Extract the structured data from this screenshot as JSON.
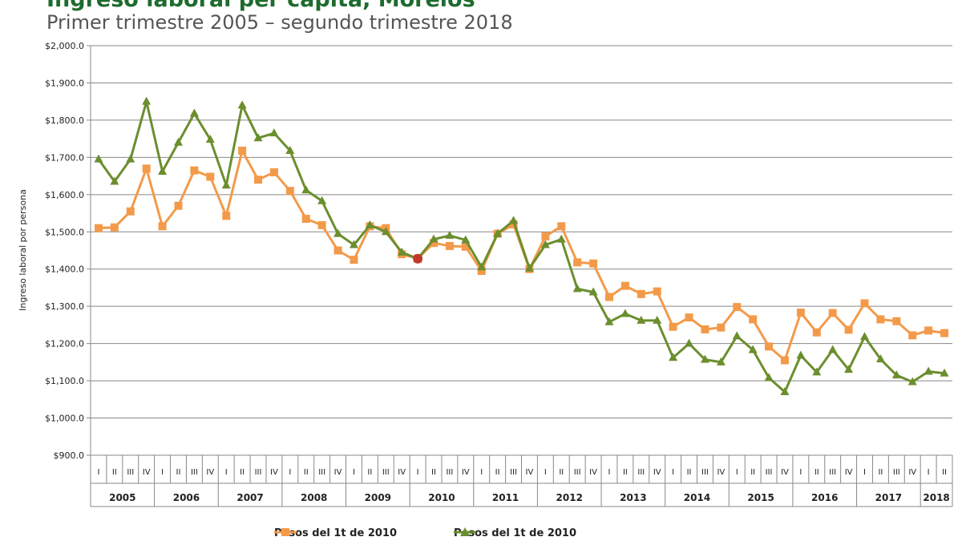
{
  "chart_data": {
    "type": "line",
    "title": "Ingreso laboral per cápita, Morelos",
    "subtitle": "Primer trimestre 2005 – segundo trimestre 2018",
    "ylabel": "Ingreso laboral por persona",
    "xlabel": "",
    "ylim": [
      900,
      2000
    ],
    "yticks": [
      "$900.0",
      "$1,000.0",
      "$1,100.0",
      "$1,200.0",
      "$1,300.0",
      "$1,400.0",
      "$1,500.0",
      "$1,600.0",
      "$1,700.0",
      "$1,800.0",
      "$1,900.0",
      "$2,000.0"
    ],
    "grid": true,
    "legend_position": "bottom",
    "years": [
      "2005",
      "2006",
      "2007",
      "2008",
      "2009",
      "2010",
      "2011",
      "2012",
      "2013",
      "2014",
      "2015",
      "2016",
      "2017",
      "2018"
    ],
    "quarters": [
      "I",
      "II",
      "III",
      "IV",
      "I",
      "II",
      "III",
      "IV",
      "I",
      "II",
      "III",
      "IV",
      "I",
      "II",
      "III",
      "IV",
      "I",
      "II",
      "III",
      "IV",
      "I",
      "II",
      "III",
      "IV",
      "I",
      "II",
      "III",
      "IV",
      "I",
      "II",
      "III",
      "IV",
      "I",
      "II",
      "III",
      "IV",
      "I",
      "II",
      "III",
      "IV",
      "I",
      "II",
      "III",
      "IV",
      "I",
      "II",
      "III",
      "IV",
      "I",
      "II",
      "III",
      "IV",
      "I",
      "II"
    ],
    "highlight": {
      "index": 20,
      "color": "#c0392b"
    },
    "series": [
      {
        "name": "Pesos del 1t de 2010",
        "color": "#f39a4a",
        "marker": "square",
        "values": [
          1510,
          1512,
          1555,
          1670,
          1515,
          1570,
          1665,
          1648,
          1543,
          1718,
          1640,
          1660,
          1610,
          1535,
          1518,
          1450,
          1425,
          1515,
          1510,
          1440,
          1428,
          1470,
          1462,
          1460,
          1395,
          1495,
          1520,
          1400,
          1488,
          1515,
          1418,
          1415,
          1325,
          1355,
          1333,
          1340,
          1245,
          1270,
          1238,
          1243,
          1298,
          1265,
          1192,
          1155,
          1283,
          1230,
          1282,
          1237,
          1308,
          1265,
          1260,
          1222,
          1235,
          1228
        ]
      },
      {
        "name": "Pesos del 1t de 2010",
        "color": "#6b8e2e",
        "marker": "triangle",
        "values": [
          1695,
          1635,
          1695,
          1850,
          1662,
          1740,
          1818,
          1748,
          1625,
          1840,
          1752,
          1765,
          1718,
          1612,
          1583,
          1495,
          1465,
          1518,
          1500,
          1445,
          1428,
          1480,
          1490,
          1478,
          1405,
          1495,
          1530,
          1402,
          1465,
          1480,
          1347,
          1338,
          1258,
          1280,
          1262,
          1262,
          1162,
          1200,
          1157,
          1150,
          1220,
          1183,
          1108,
          1070,
          1168,
          1123,
          1183,
          1130,
          1218,
          1158,
          1115,
          1097,
          1125,
          1120
        ]
      }
    ]
  }
}
